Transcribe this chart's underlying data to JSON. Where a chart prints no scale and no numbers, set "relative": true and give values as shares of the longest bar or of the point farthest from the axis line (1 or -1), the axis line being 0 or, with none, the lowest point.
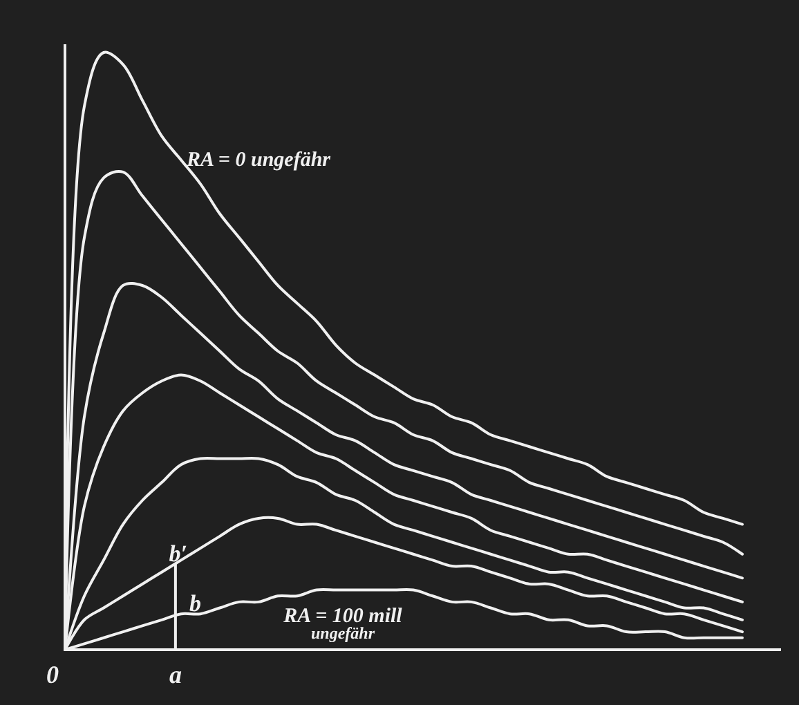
{
  "chart_data": {
    "type": "line",
    "relative": true,
    "marker": "none",
    "line_style": "solid",
    "categories": [
      null,
      null,
      null,
      null,
      null,
      null,
      null,
      null,
      null,
      null,
      null,
      null,
      null,
      null,
      null,
      null,
      null,
      null,
      null,
      null,
      null,
      null,
      null,
      null,
      null,
      null,
      null,
      null,
      null,
      null,
      null,
      null,
      null,
      null,
      null,
      null
    ],
    "series": [
      {
        "color": "#f0f0f0",
        "values": [
          0,
          0.91,
          1,
          0.98,
          0.92,
          0.86,
          0.82,
          0.78,
          0.73,
          0.69,
          0.65,
          0.61,
          0.58,
          0.55,
          0.51,
          0.48,
          0.46,
          0.44,
          0.42,
          0.41,
          0.39,
          0.38,
          0.36,
          0.35,
          0.34,
          0.33,
          0.32,
          0.31,
          0.29,
          0.28,
          0.27,
          0.26,
          0.25,
          0.23,
          0.22,
          0.21
        ]
      },
      {
        "color": "#f0f0f0",
        "values": [
          0,
          0.69,
          0.79,
          0.8,
          0.76,
          0.72,
          0.68,
          0.64,
          0.6,
          0.56,
          0.53,
          0.5,
          0.48,
          0.45,
          0.43,
          0.41,
          0.39,
          0.38,
          0.36,
          0.35,
          0.33,
          0.32,
          0.31,
          0.3,
          0.28,
          0.27,
          0.26,
          0.25,
          0.24,
          0.23,
          0.22,
          0.21,
          0.2,
          0.19,
          0.18,
          0.16
        ]
      },
      {
        "color": "#f0f0f0",
        "values": [
          0,
          0.39,
          0.53,
          0.61,
          0.61,
          0.59,
          0.56,
          0.53,
          0.5,
          0.47,
          0.45,
          0.42,
          0.4,
          0.38,
          0.36,
          0.35,
          0.33,
          0.31,
          0.3,
          0.29,
          0.28,
          0.26,
          0.25,
          0.24,
          0.23,
          0.22,
          0.21,
          0.2,
          0.19,
          0.18,
          0.17,
          0.16,
          0.15,
          0.14,
          0.13,
          0.12
        ]
      },
      {
        "color": "#f0f0f0",
        "values": [
          0,
          0.24,
          0.34,
          0.4,
          0.43,
          0.45,
          0.46,
          0.45,
          0.43,
          0.41,
          0.39,
          0.37,
          0.35,
          0.33,
          0.32,
          0.3,
          0.28,
          0.26,
          0.25,
          0.24,
          0.23,
          0.22,
          0.2,
          0.19,
          0.18,
          0.17,
          0.16,
          0.16,
          0.15,
          0.14,
          0.13,
          0.12,
          0.11,
          0.1,
          0.09,
          0.08
        ]
      },
      {
        "color": "#f0f0f0",
        "values": [
          0,
          0.09,
          0.15,
          0.21,
          0.25,
          0.28,
          0.31,
          0.32,
          0.32,
          0.32,
          0.32,
          0.31,
          0.29,
          0.28,
          0.26,
          0.25,
          0.23,
          0.21,
          0.2,
          0.19,
          0.18,
          0.17,
          0.16,
          0.15,
          0.14,
          0.13,
          0.13,
          0.12,
          0.11,
          0.1,
          0.09,
          0.08,
          0.07,
          0.07,
          0.06,
          0.05
        ]
      },
      {
        "color": "#f0f0f0",
        "values": [
          0,
          0.05,
          0.07,
          0.09,
          0.11,
          0.13,
          0.15,
          0.17,
          0.19,
          0.21,
          0.22,
          0.22,
          0.21,
          0.21,
          0.2,
          0.19,
          0.18,
          0.17,
          0.16,
          0.15,
          0.14,
          0.14,
          0.13,
          0.12,
          0.11,
          0.11,
          0.1,
          0.09,
          0.09,
          0.08,
          0.07,
          0.06,
          0.06,
          0.05,
          0.04,
          0.03
        ]
      },
      {
        "color": "#f0f0f0",
        "values": [
          0,
          0.01,
          0.02,
          0.03,
          0.04,
          0.05,
          0.06,
          0.06,
          0.07,
          0.08,
          0.08,
          0.09,
          0.09,
          0.1,
          0.1,
          0.1,
          0.1,
          0.1,
          0.1,
          0.09,
          0.08,
          0.08,
          0.07,
          0.06,
          0.06,
          0.05,
          0.05,
          0.04,
          0.04,
          0.03,
          0.03,
          0.03,
          0.02,
          0.02,
          0.02,
          0.02
        ]
      }
    ],
    "annotations": [
      "RA = 0 ungefähr",
      "RA = 100 mill",
      "ungefähr",
      "0",
      "a",
      "b",
      "b′"
    ]
  }
}
